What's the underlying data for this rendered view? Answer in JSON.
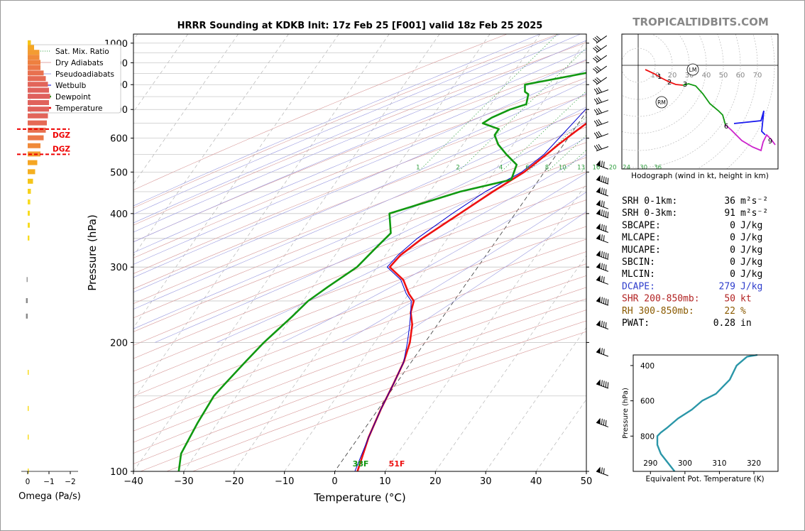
{
  "title": "HRRR Sounding at KDKB Init: 17z Feb 25 [F001] valid 18z Feb 25 2025",
  "brand": "TROPICALTIDBITS.COM",
  "skewt": {
    "xlabel": "Temperature (°C)",
    "ylabel": "Pressure (hPa)",
    "xticks": [
      -40,
      -30,
      -20,
      -10,
      0,
      10,
      20,
      30,
      40,
      50
    ],
    "xtick_labels": [
      "−40",
      "−30",
      "−20",
      "−10",
      "0",
      "10",
      "20",
      "30",
      "40",
      "50"
    ],
    "yticks": [
      100,
      200,
      300,
      400,
      500,
      600,
      700,
      800,
      900,
      1000
    ],
    "xlim": [
      -40,
      50
    ],
    "plim": [
      1050,
      100
    ],
    "legend": [
      {
        "label": "Sat. Mix. Ratio",
        "color": "#2a9d3a",
        "style": "dotted"
      },
      {
        "label": "Dry Adiabats",
        "color": "#d88a8a",
        "style": "solid-thin"
      },
      {
        "label": "Pseudoadiabats",
        "color": "#8080d0",
        "style": "solid-thin"
      },
      {
        "label": "Wetbulb",
        "color": "#0000cc",
        "style": "solid"
      },
      {
        "label": "Dewpoint",
        "color": "#119911",
        "style": "thick"
      },
      {
        "label": "Temperature",
        "color": "#ee1111",
        "style": "thick"
      }
    ],
    "mixing_ratio_labels": [
      "1",
      "2",
      "4",
      "6",
      "8",
      "10",
      "13",
      "16",
      "20",
      "24",
      "30",
      "36"
    ],
    "surface_dewpoint_label": "38F",
    "surface_temp_label": "51F"
  },
  "chart_data": [
    {
      "type": "line",
      "name": "skew-t",
      "series": [
        {
          "name": "Temperature",
          "color": "#ee1111",
          "points": [
            [
              12.0,
              1000
            ],
            [
              9.0,
              965
            ],
            [
              7.2,
              925
            ],
            [
              6.8,
              880
            ],
            [
              6.0,
              850
            ],
            [
              4.2,
              800
            ],
            [
              3.2,
              750
            ],
            [
              2.8,
              700
            ],
            [
              2.0,
              660
            ],
            [
              0.5,
              620
            ],
            [
              -1.0,
              580
            ],
            [
              -2.0,
              550
            ],
            [
              -4.0,
              500
            ],
            [
              -7.5,
              450
            ],
            [
              -11.0,
              400
            ],
            [
              -15.0,
              350
            ],
            [
              -17.0,
              320
            ],
            [
              -17.5,
              300
            ],
            [
              -13.0,
              280
            ],
            [
              -10.0,
              260
            ],
            [
              -8.0,
              250
            ],
            [
              -7.0,
              235
            ],
            [
              -5.0,
              220
            ],
            [
              -3.0,
              200
            ],
            [
              -1.5,
              180
            ],
            [
              -0.5,
              160
            ],
            [
              0.5,
              140
            ],
            [
              2.0,
              120
            ],
            [
              4.5,
              100
            ]
          ]
        },
        {
          "name": "Wetbulb",
          "color": "#0000cc",
          "points": [
            [
              8.5,
              1000
            ],
            [
              6.5,
              965
            ],
            [
              5.0,
              925
            ],
            [
              3.5,
              880
            ],
            [
              2.0,
              850
            ],
            [
              0.8,
              800
            ],
            [
              0.2,
              750
            ],
            [
              -0.5,
              700
            ],
            [
              -1.5,
              620
            ],
            [
              -2.5,
              550
            ],
            [
              -4.5,
              500
            ],
            [
              -9.0,
              450
            ],
            [
              -12.5,
              400
            ],
            [
              -16.0,
              350
            ],
            [
              -17.5,
              320
            ],
            [
              -18.0,
              300
            ],
            [
              -13.5,
              280
            ],
            [
              -10.5,
              260
            ],
            [
              -8.5,
              250
            ],
            [
              -7.0,
              235
            ],
            [
              -5.5,
              220
            ],
            [
              -3.5,
              200
            ],
            [
              -1.5,
              180
            ],
            [
              -0.5,
              160
            ],
            [
              0.5,
              140
            ],
            [
              2.0,
              120
            ],
            [
              4.0,
              100
            ]
          ]
        },
        {
          "name": "Dewpoint",
          "color": "#119911",
          "points": [
            [
              5.0,
              1000
            ],
            [
              3.0,
              990
            ],
            [
              2.0,
              940
            ],
            [
              1.5,
              900
            ],
            [
              -2.0,
              870
            ],
            [
              -16.0,
              800
            ],
            [
              -15.0,
              770
            ],
            [
              -14.0,
              760
            ],
            [
              -13.0,
              720
            ],
            [
              -15.5,
              700
            ],
            [
              -18.0,
              670
            ],
            [
              -19.0,
              650
            ],
            [
              -15.0,
              630
            ],
            [
              -15.0,
              610
            ],
            [
              -13.0,
              580
            ],
            [
              -10.0,
              550
            ],
            [
              -6.5,
              520
            ],
            [
              -5.5,
              480
            ],
            [
              -14.0,
              450
            ],
            [
              -25.0,
              400
            ],
            [
              -22.0,
              360
            ],
            [
              -23.0,
              330
            ],
            [
              -24.0,
              300
            ],
            [
              -27.0,
              270
            ],
            [
              -29.0,
              250
            ],
            [
              -30.0,
              230
            ],
            [
              -32.0,
              200
            ],
            [
              -33.0,
              180
            ],
            [
              -34.0,
              160
            ],
            [
              -34.5,
              150
            ],
            [
              -34.0,
              130
            ],
            [
              -33.0,
              110
            ],
            [
              -31.0,
              100
            ]
          ]
        }
      ]
    },
    {
      "type": "line",
      "name": "hodograph",
      "xlabel": "Hodograph (wind in kt, height in km)",
      "ring_labels": [
        "10",
        "20",
        "30",
        "40",
        "50",
        "60",
        "70"
      ],
      "height_labels": [
        "1",
        "2",
        "3",
        "6",
        "9"
      ],
      "markers": [
        "LM",
        "RM"
      ]
    },
    {
      "type": "line",
      "name": "theta-e",
      "xlabel": "Equivalent Pot. Temperature (K)",
      "ylabel": "Pressure (hPa)",
      "xticks": [
        290,
        300,
        310,
        320
      ],
      "yticks": [
        400,
        600,
        800
      ],
      "xlim": [
        285,
        327
      ],
      "plim": [
        1000,
        340
      ],
      "points": [
        [
          297,
          1000
        ],
        [
          296,
          975
        ],
        [
          295,
          950
        ],
        [
          293,
          900
        ],
        [
          292,
          850
        ],
        [
          292,
          800
        ],
        [
          293,
          780
        ],
        [
          295,
          750
        ],
        [
          298,
          700
        ],
        [
          302,
          650
        ],
        [
          305,
          600
        ],
        [
          309,
          560
        ],
        [
          311,
          520
        ],
        [
          313,
          480
        ],
        [
          315,
          400
        ],
        [
          318,
          350
        ],
        [
          321,
          340
        ]
      ]
    },
    {
      "type": "bar",
      "name": "omega",
      "xlabel": "Omega (Pa/s)",
      "xticks": [
        0,
        -1,
        -2
      ],
      "xtick_labels": [
        "0",
        "−1",
        "−2"
      ],
      "dgz_label": "DGZ",
      "dgz_pressures": [
        550,
        630
      ]
    }
  ],
  "params": [
    {
      "label": "SRH 0-1km:",
      "value": "36",
      "unit": "m²s⁻²",
      "color": "#000000"
    },
    {
      "label": "SRH 0-3km:",
      "value": "91",
      "unit": "m²s⁻²",
      "color": "#000000"
    },
    {
      "label": "SBCAPE:",
      "value": "0",
      "unit": "J/kg",
      "color": "#000000"
    },
    {
      "label": "MLCAPE:",
      "value": "0",
      "unit": "J/kg",
      "color": "#000000"
    },
    {
      "label": "MUCAPE:",
      "value": "0",
      "unit": "J/kg",
      "color": "#000000"
    },
    {
      "label": "SBCIN:",
      "value": "0",
      "unit": "J/kg",
      "color": "#000000"
    },
    {
      "label": "MLCIN:",
      "value": "0",
      "unit": "J/kg",
      "color": "#000000"
    },
    {
      "label": "DCAPE:",
      "value": "279",
      "unit": "J/kg",
      "color": "#2e3dcc"
    },
    {
      "label": "SHR 200-850mb:",
      "value": "50",
      "unit": "kt",
      "color": "#b22222"
    },
    {
      "label": "RH 300-850mb:",
      "value": "22",
      "unit": "%",
      "color": "#8a5a00"
    },
    {
      "label": "PWAT:",
      "value": "0.28",
      "unit": "in",
      "color": "#000000"
    }
  ]
}
